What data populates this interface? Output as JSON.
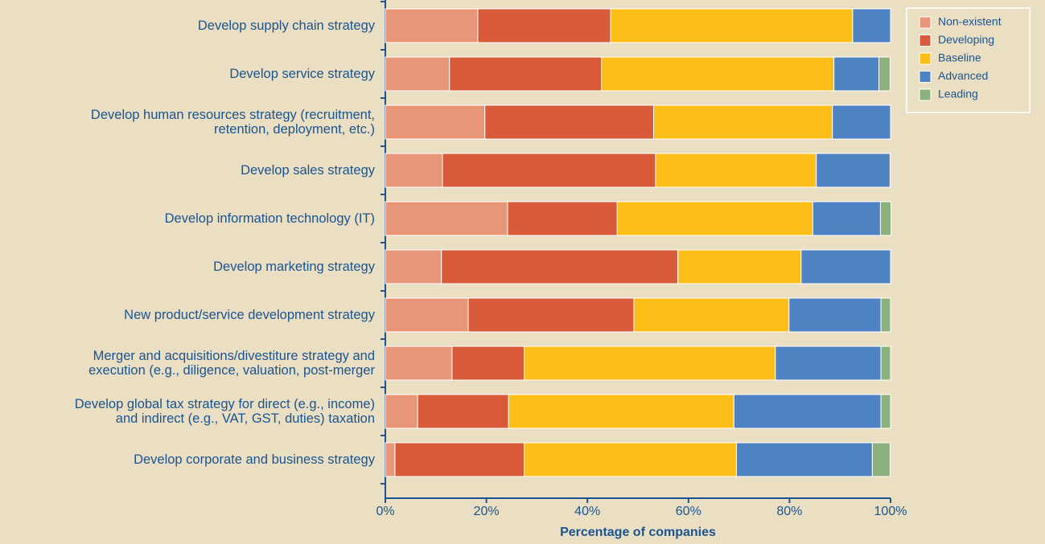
{
  "chart_data": {
    "type": "stacked-bar-horizontal",
    "categories": [
      "Develop supply chain strategy",
      "Develop service strategy",
      "Develop human resources strategy (recruitment,\nretention, deployment, etc.)",
      "Develop sales strategy",
      "Develop information technology (IT)",
      "Develop marketing strategy",
      "New product/service development strategy",
      "Merger and acquisitions/divestiture strategy and\nexecution (e.g., diligence, valuation, post-merger",
      "Develop global tax strategy for direct (e.g., income)\nand indirect (e.g., VAT, GST, duties) taxation",
      "Develop corporate and business strategy"
    ],
    "series": [
      {
        "name": "Non-existent",
        "color": "#e8967a",
        "values": [
          18.3,
          12.7,
          19.7,
          11.3,
          24.2,
          11.1,
          16.4,
          13.2,
          6.4,
          1.9
        ]
      },
      {
        "name": "Developing",
        "color": "#d95a38",
        "values": [
          26.3,
          30.1,
          33.4,
          42.2,
          21.7,
          46.8,
          32.8,
          14.3,
          18.0,
          25.6
        ]
      },
      {
        "name": "Baseline",
        "color": "#fdbd17",
        "values": [
          47.9,
          46.0,
          35.4,
          31.8,
          38.7,
          24.4,
          30.7,
          49.7,
          44.6,
          42.0
        ]
      },
      {
        "name": "Advanced",
        "color": "#4f82c3",
        "values": [
          7.5,
          8.9,
          11.5,
          14.6,
          13.4,
          17.7,
          18.2,
          20.9,
          29.1,
          26.9
        ]
      },
      {
        "name": "Leading",
        "color": "#8cb07c",
        "values": [
          0,
          2.2,
          0,
          0,
          2.1,
          0,
          1.9,
          1.9,
          1.9,
          3.5
        ]
      }
    ],
    "xlabel": "Percentage of companies",
    "xlim": [
      0,
      100
    ],
    "xticks": [
      {
        "value": 0,
        "label": "0%"
      },
      {
        "value": 20,
        "label": "20%"
      },
      {
        "value": 40,
        "label": "40%"
      },
      {
        "value": 60,
        "label": "60%"
      },
      {
        "value": 80,
        "label": "80%"
      },
      {
        "value": 100,
        "label": "100%"
      }
    ],
    "legend": "upper right"
  }
}
